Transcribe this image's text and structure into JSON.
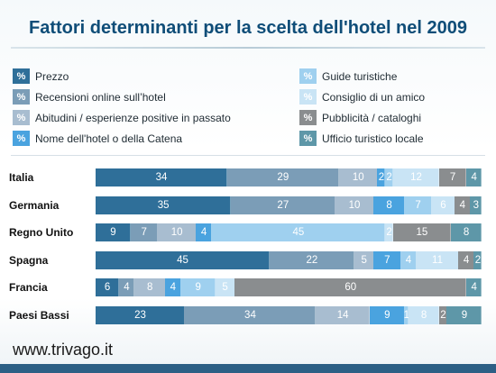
{
  "title": "Fattori determinanti per la scelta dell'hotel nel 2009",
  "footer": "www.trivago.it",
  "chart_data": {
    "type": "bar",
    "orientation": "horizontal",
    "stacked": true,
    "title": "Fattori determinanti per la scelta dell'hotel nel 2009",
    "categories": [
      "Italia",
      "Germania",
      "Regno Unito",
      "Spagna",
      "Francia",
      "Paesi Bassi"
    ],
    "legend_placement": "top",
    "series": [
      {
        "name": "Prezzo",
        "symbol": "%",
        "color": "#2f6f99",
        "values": [
          34,
          35,
          9,
          45,
          6,
          23
        ]
      },
      {
        "name": "Recensioni online sull’hotel",
        "symbol": "%",
        "color": "#7b9db7",
        "values": [
          29,
          27,
          7,
          22,
          4,
          34
        ]
      },
      {
        "name": "Abitudini / esperienze positive in passato",
        "symbol": "%",
        "color": "#a8bdd0",
        "values": [
          10,
          10,
          10,
          5,
          8,
          14
        ]
      },
      {
        "name": "Nome dell'hotel o della Catena",
        "symbol": "%",
        "color": "#4aa3df",
        "values": [
          2,
          8,
          4,
          7,
          4,
          9
        ]
      },
      {
        "name": "Guide turistiche",
        "symbol": "%",
        "color": "#9fd0ef",
        "values": [
          2,
          7,
          45,
          4,
          9,
          1
        ]
      },
      {
        "name": "Consiglio di un amico",
        "symbol": "%",
        "color": "#c9e4f5",
        "values": [
          12,
          6,
          2,
          11,
          5,
          8
        ]
      },
      {
        "name": "Pubblicità / cataloghi",
        "symbol": "%",
        "color": "#8a8d8f",
        "values": [
          7,
          4,
          15,
          4,
          60,
          2
        ]
      },
      {
        "name": "Ufficio turistico locale",
        "symbol": "%",
        "color": "#5e97a8",
        "values": [
          4,
          3,
          8,
          2,
          4,
          9
        ]
      }
    ]
  }
}
